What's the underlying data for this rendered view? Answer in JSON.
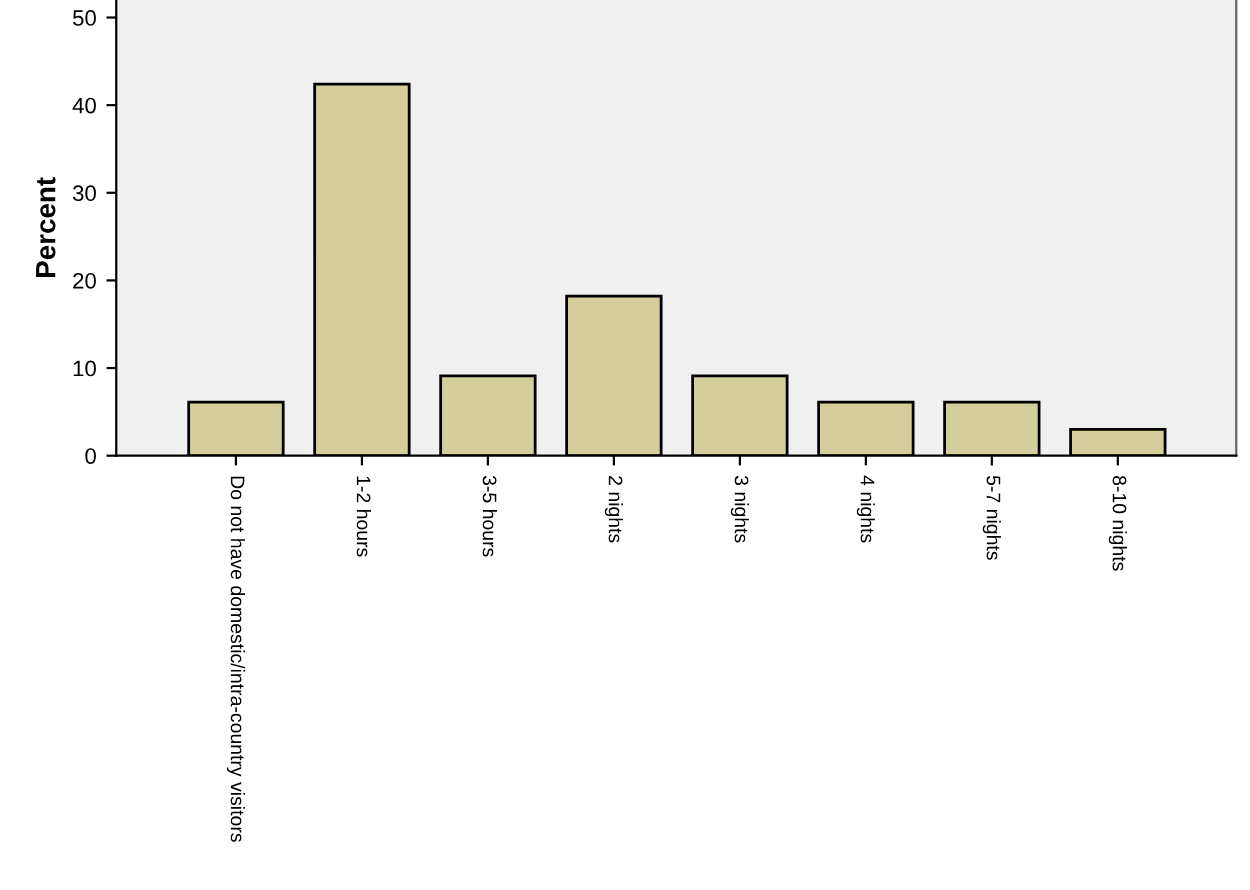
{
  "chart_data": {
    "type": "bar",
    "ylabel": "Percent",
    "categories": [
      "Do not have domestic/intra-country visitors",
      "1-2 hours",
      "3-5 hours",
      "2 nights",
      "3 nights",
      "4 nights",
      "5-7 nights",
      "8-10 nights"
    ],
    "values": [
      6.1,
      42.4,
      9.1,
      18.2,
      9.1,
      6.1,
      6.1,
      3.0
    ],
    "color": "#d3ce9b",
    "ylim": [
      0,
      52
    ],
    "yticks": [
      0,
      10,
      20,
      30,
      40,
      50
    ],
    "grid": false,
    "legend": false
  }
}
